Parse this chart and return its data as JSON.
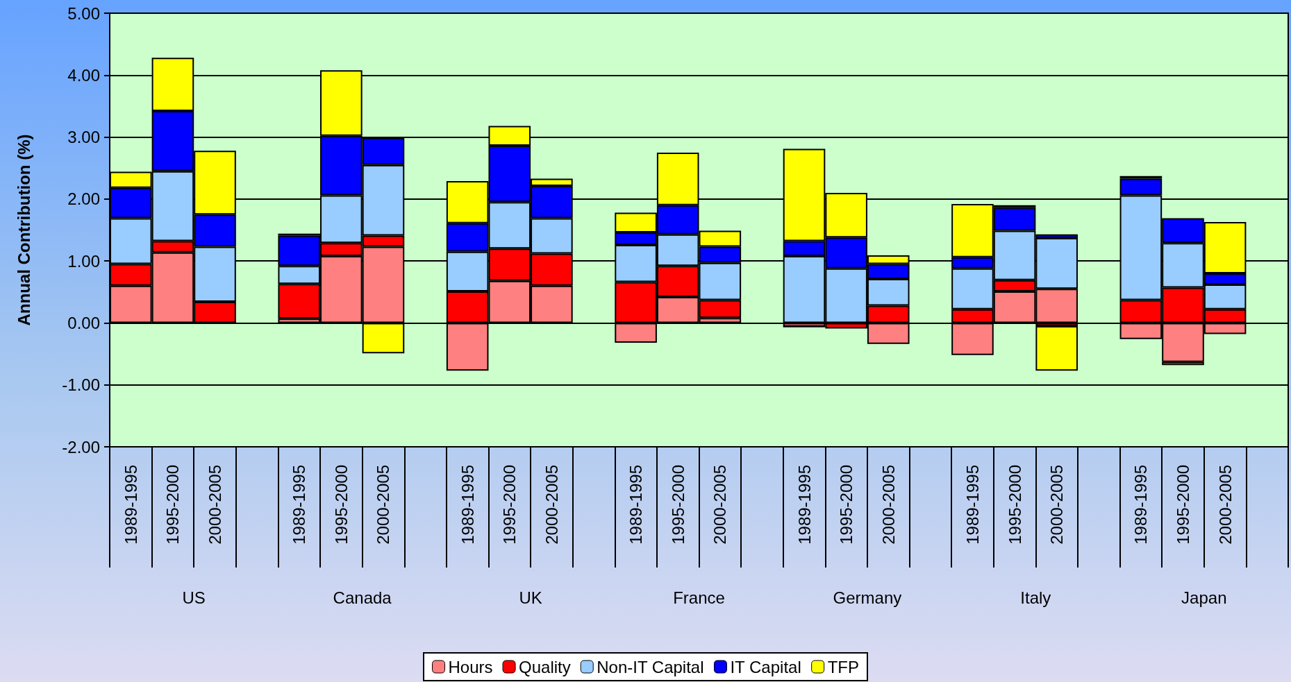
{
  "chart_data": {
    "type": "bar",
    "stacked": true,
    "ylabel": "Annual Contribution (%)",
    "categories": [
      "1989-1995",
      "1995-2000",
      "2000-2005",
      null,
      "1989-1995",
      "1995-2000",
      "2000-2005",
      null,
      "1989-1995",
      "1995-2000",
      "2000-2005",
      null,
      "1989-1995",
      "1995-2000",
      "2000-2005",
      null,
      "1989-1995",
      "1995-2000",
      "2000-2005",
      null,
      "1989-1995",
      "1995-2000",
      "2000-2005",
      null,
      "1989-1995",
      "1995-2000",
      "2000-2005",
      null
    ],
    "annotations": [
      "US",
      "Canada",
      "UK",
      "France",
      "Germany",
      "Italy",
      "Japan"
    ],
    "series": [
      {
        "name": "Hours",
        "color": "#ff8080",
        "values": [
          0.6,
          1.14,
          0,
          null,
          0.07,
          1.08,
          1.23,
          null,
          -0.77,
          0.68,
          0.6,
          null,
          -0.32,
          0.42,
          0.08,
          null,
          -0.06,
          0,
          -0.34,
          null,
          -0.52,
          0.51,
          0.55,
          null,
          -0.26,
          -0.63,
          -0.18,
          null
        ]
      },
      {
        "name": "Quality",
        "color": "#ff0000",
        "values": [
          0.35,
          0.18,
          0.34,
          null,
          0.56,
          0.21,
          0.18,
          null,
          0.51,
          0.52,
          0.52,
          null,
          0.66,
          0.5,
          0.29,
          null,
          0,
          -0.09,
          0.28,
          null,
          0.22,
          0.18,
          -0.05,
          null,
          0.37,
          0.57,
          0.22,
          null
        ]
      },
      {
        "name": "Non-IT Capital",
        "color": "#99ccff",
        "values": [
          0.74,
          1.13,
          0.89,
          null,
          0.29,
          0.77,
          1.14,
          null,
          0.64,
          0.75,
          0.57,
          null,
          0.6,
          0.51,
          0.6,
          null,
          1.08,
          0.88,
          0.43,
          null,
          0.66,
          0.8,
          0.82,
          null,
          1.69,
          0.72,
          0.4,
          null
        ]
      },
      {
        "name": "IT Capital",
        "color": "#0000ff",
        "values": [
          0.49,
          0.97,
          0.52,
          null,
          0.49,
          0.96,
          0.44,
          null,
          0.46,
          0.91,
          0.52,
          null,
          0.2,
          0.47,
          0.26,
          null,
          0.24,
          0.5,
          0.24,
          null,
          0.18,
          0.37,
          0.06,
          null,
          0.27,
          0.4,
          0.18,
          null
        ]
      },
      {
        "name": "TFP",
        "color": "#ffff00",
        "values": [
          0.26,
          0.86,
          1.03,
          null,
          0.03,
          1.06,
          -0.49,
          null,
          0.68,
          0.32,
          0.12,
          null,
          0.32,
          0.85,
          0.26,
          null,
          1.49,
          0.72,
          0.14,
          null,
          0.86,
          0.04,
          -0.72,
          null,
          0.04,
          -0.05,
          0.83,
          null
        ]
      }
    ],
    "ylim": [
      -2,
      5
    ],
    "yticks": [
      {
        "value": -2,
        "label": "-2.00"
      },
      {
        "value": -1,
        "label": "-1.00"
      },
      {
        "value": 0,
        "label": "0.00"
      },
      {
        "value": 1,
        "label": "1.00"
      },
      {
        "value": 2,
        "label": "2.00"
      },
      {
        "value": 3,
        "label": "3.00"
      },
      {
        "value": 4,
        "label": "4.00"
      },
      {
        "value": 5,
        "label": "5.00"
      }
    ],
    "grid": "y",
    "legend": "bottom"
  }
}
